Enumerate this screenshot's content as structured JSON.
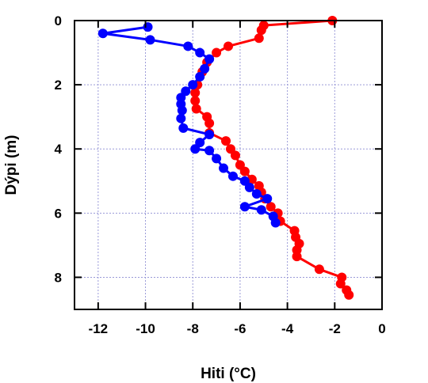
{
  "chart_data": {
    "type": "line",
    "xlabel": "Hiti (°C)",
    "ylabel": "Dýpi (m)",
    "xlim": [
      -13,
      0
    ],
    "ylim": [
      0,
      9
    ],
    "y_inverted": true,
    "x_ticks": [
      "-12",
      "-10",
      "-8",
      "-6",
      "-4",
      "-2",
      "0"
    ],
    "x_tick_values": [
      -12,
      -10,
      -8,
      -6,
      -4,
      -2,
      0
    ],
    "y_ticks": [
      "0",
      "2",
      "4",
      "6",
      "8"
    ],
    "y_tick_values": [
      0,
      2,
      4,
      6,
      8
    ],
    "grid": true,
    "series": [
      {
        "color": "#ff0000",
        "points": [
          [
            -2.1,
            0.0
          ],
          [
            -5.0,
            0.15
          ],
          [
            -5.1,
            0.3
          ],
          [
            -5.2,
            0.55
          ],
          [
            -6.5,
            0.8
          ],
          [
            -7.0,
            1.0
          ],
          [
            -7.4,
            1.3
          ],
          [
            -7.6,
            1.6
          ],
          [
            -7.8,
            2.0
          ],
          [
            -7.9,
            2.25
          ],
          [
            -7.9,
            2.5
          ],
          [
            -7.85,
            2.75
          ],
          [
            -7.4,
            3.0
          ],
          [
            -7.3,
            3.2
          ],
          [
            -7.3,
            3.5
          ],
          [
            -6.6,
            3.75
          ],
          [
            -6.4,
            4.0
          ],
          [
            -6.2,
            4.2
          ],
          [
            -6.0,
            4.5
          ],
          [
            -5.8,
            4.7
          ],
          [
            -5.5,
            4.95
          ],
          [
            -5.2,
            5.15
          ],
          [
            -5.1,
            5.35
          ],
          [
            -4.95,
            5.55
          ],
          [
            -4.7,
            5.8
          ],
          [
            -4.4,
            6.0
          ],
          [
            -4.3,
            6.25
          ],
          [
            -3.7,
            6.55
          ],
          [
            -3.65,
            6.75
          ],
          [
            -3.5,
            6.95
          ],
          [
            -3.6,
            7.15
          ],
          [
            -3.6,
            7.35
          ],
          [
            -2.65,
            7.75
          ],
          [
            -1.7,
            8.0
          ],
          [
            -1.75,
            8.2
          ],
          [
            -1.5,
            8.4
          ],
          [
            -1.4,
            8.55
          ]
        ]
      },
      {
        "color": "#0000ff",
        "points": [
          [
            -9.9,
            0.2
          ],
          [
            -11.8,
            0.4
          ],
          [
            -9.8,
            0.6
          ],
          [
            -8.2,
            0.8
          ],
          [
            -7.7,
            1.0
          ],
          [
            -7.3,
            1.2
          ],
          [
            -7.5,
            1.5
          ],
          [
            -7.7,
            1.75
          ],
          [
            -8.0,
            2.0
          ],
          [
            -8.3,
            2.2
          ],
          [
            -8.5,
            2.4
          ],
          [
            -8.5,
            2.6
          ],
          [
            -8.45,
            2.8
          ],
          [
            -8.5,
            3.05
          ],
          [
            -8.4,
            3.35
          ],
          [
            -7.3,
            3.55
          ],
          [
            -7.7,
            3.8
          ],
          [
            -7.9,
            4.0
          ],
          [
            -7.3,
            4.05
          ],
          [
            -7.0,
            4.3
          ],
          [
            -6.7,
            4.6
          ],
          [
            -6.3,
            4.85
          ],
          [
            -5.8,
            5.0
          ],
          [
            -5.6,
            5.2
          ],
          [
            -5.3,
            5.4
          ],
          [
            -4.85,
            5.55
          ],
          [
            -5.8,
            5.8
          ],
          [
            -5.1,
            5.9
          ],
          [
            -4.6,
            6.1
          ],
          [
            -4.5,
            6.3
          ]
        ]
      }
    ]
  }
}
